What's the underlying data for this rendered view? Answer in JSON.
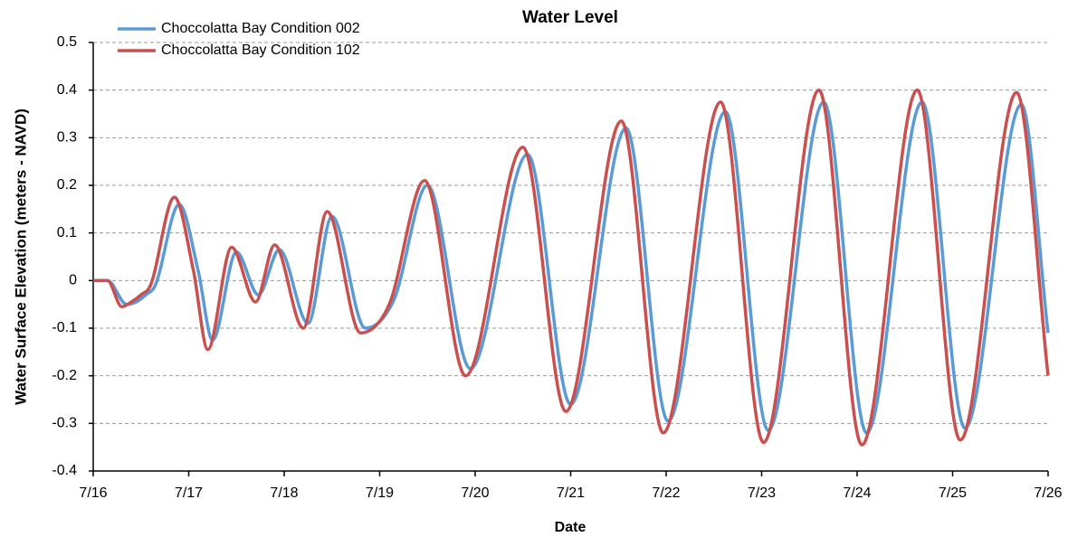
{
  "chart_data": {
    "type": "line",
    "title": "Water Level",
    "xlabel": "Date",
    "ylabel": "Water Surface Elevation (meters - NAVD)",
    "xlim": [
      0,
      10
    ],
    "xticks": [
      {
        "value": 0,
        "label": "7/16"
      },
      {
        "value": 1,
        "label": "7/17"
      },
      {
        "value": 2,
        "label": "7/18"
      },
      {
        "value": 3,
        "label": "7/19"
      },
      {
        "value": 4,
        "label": "7/20"
      },
      {
        "value": 5,
        "label": "7/21"
      },
      {
        "value": 6,
        "label": "7/22"
      },
      {
        "value": 7,
        "label": "7/23"
      },
      {
        "value": 8,
        "label": "7/24"
      },
      {
        "value": 9,
        "label": "7/25"
      },
      {
        "value": 10,
        "label": "7/26"
      }
    ],
    "ylim": [
      -0.4,
      0.5
    ],
    "yticks": [
      -0.4,
      -0.3,
      -0.2,
      -0.1,
      0,
      0.1,
      0.2,
      0.3,
      0.4,
      0.5
    ],
    "grid": true,
    "legend": "upper left",
    "series": [
      {
        "name": "Choccolatta Bay Condition 002",
        "color": "#5b9bd5",
        "x": [
          0,
          0.15,
          0.35,
          0.45,
          0.55,
          0.65,
          0.9,
          1.1,
          1.25,
          1.5,
          1.73,
          1.95,
          2.25,
          2.5,
          2.85,
          3.15,
          3.5,
          3.95,
          4.55,
          5.0,
          5.58,
          6.02,
          6.62,
          7.07,
          7.65,
          8.1,
          8.68,
          9.13,
          9.72,
          10
        ],
        "values": [
          0,
          0,
          -0.05,
          -0.045,
          -0.03,
          -0.01,
          0.16,
          0.02,
          -0.125,
          0.06,
          -0.03,
          0.065,
          -0.09,
          0.135,
          -0.1,
          -0.04,
          0.2,
          -0.185,
          0.265,
          -0.26,
          0.32,
          -0.295,
          0.355,
          -0.315,
          0.375,
          -0.32,
          0.375,
          -0.31,
          0.37,
          -0.11
        ]
      },
      {
        "name": "Choccolatta Bay Condition 102",
        "color": "#c9504f",
        "x": [
          0,
          0.15,
          0.3,
          0.4,
          0.5,
          0.6,
          0.85,
          1.05,
          1.2,
          1.45,
          1.7,
          1.9,
          2.2,
          2.45,
          2.8,
          3.1,
          3.47,
          3.9,
          4.5,
          4.95,
          5.53,
          5.97,
          6.57,
          7.02,
          7.6,
          8.05,
          8.63,
          9.08,
          9.67,
          10
        ],
        "values": [
          0,
          0,
          -0.055,
          -0.045,
          -0.03,
          -0.01,
          0.175,
          0.02,
          -0.145,
          0.07,
          -0.045,
          0.075,
          -0.1,
          0.145,
          -0.11,
          -0.05,
          0.21,
          -0.2,
          0.28,
          -0.275,
          0.335,
          -0.32,
          0.375,
          -0.34,
          0.4,
          -0.345,
          0.4,
          -0.335,
          0.395,
          -0.2
        ]
      }
    ]
  }
}
